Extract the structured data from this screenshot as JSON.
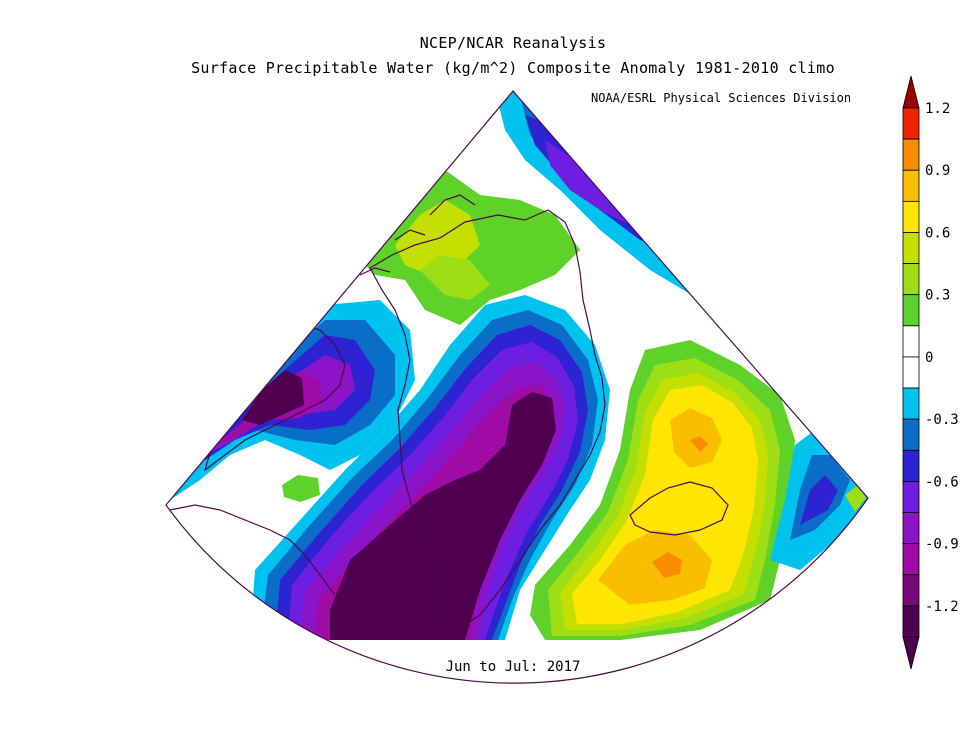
{
  "title": "NCEP/NCAR Reanalysis",
  "subtitle": "Surface Precipitable Water (kg/m^2) Composite Anomaly 1981-2010 climo",
  "credit": "NOAA/ESRL Physical Sciences Division",
  "period": "Jun to Jul: 2017",
  "colorbar": {
    "min": -1.2,
    "max": 1.2,
    "labels": [
      "1.2",
      "0.9",
      "0.6",
      "0.3",
      "0",
      "-0.3",
      "-0.6",
      "-0.9",
      "-1.2"
    ],
    "bins": [
      {
        "range": [
          1.05,
          1.2
        ],
        "color": "#f22400"
      },
      {
        "range": [
          0.9,
          1.05
        ],
        "color": "#fa8c00"
      },
      {
        "range": [
          0.75,
          0.9
        ],
        "color": "#fabe00"
      },
      {
        "range": [
          0.6,
          0.75
        ],
        "color": "#ffe600"
      },
      {
        "range": [
          0.45,
          0.6
        ],
        "color": "#c5e000"
      },
      {
        "range": [
          0.3,
          0.45
        ],
        "color": "#9ede14"
      },
      {
        "range": [
          0.15,
          0.3
        ],
        "color": "#5fd22a"
      },
      {
        "range": [
          0,
          0.15
        ],
        "color": "#ffffff"
      },
      {
        "range": [
          -0.15,
          0
        ],
        "color": "#ffffff"
      },
      {
        "range": [
          -0.3,
          -0.15
        ],
        "color": "#00c2ef"
      },
      {
        "range": [
          -0.45,
          -0.3
        ],
        "color": "#0a6ec8"
      },
      {
        "range": [
          -0.6,
          -0.45
        ],
        "color": "#2d23d2"
      },
      {
        "range": [
          -0.75,
          -0.6
        ],
        "color": "#6e1ee1"
      },
      {
        "range": [
          -0.9,
          -0.75
        ],
        "color": "#8c14c8"
      },
      {
        "range": [
          -1.05,
          -0.9
        ],
        "color": "#a00aa5"
      },
      {
        "range": [
          -1.2,
          -1.05
        ],
        "color": "#780a78"
      },
      {
        "range": [
          -1.35,
          -1.2
        ],
        "color": "#500050"
      }
    ]
  },
  "map": {
    "region": "Greenland / North Atlantic sector",
    "fields": [
      {
        "feature": "negative anomaly over central/southern Greenland and Labrador Sea",
        "level": "-1.2",
        "color": "#500050"
      },
      {
        "feature": "negative anomaly over Baffin Bay / Canadian Arctic",
        "level": "-1.2",
        "color": "#500050"
      },
      {
        "feature": "positive anomaly near Iceland",
        "level": "0.9",
        "color": "#fa8c00"
      },
      {
        "feature": "positive anomaly over northern Greenland",
        "level": "0.3",
        "color": "#9ede14"
      },
      {
        "feature": "negative anomaly over Barents / Norwegian Sea",
        "level": "-0.6",
        "color": "#2d23d2"
      }
    ]
  }
}
